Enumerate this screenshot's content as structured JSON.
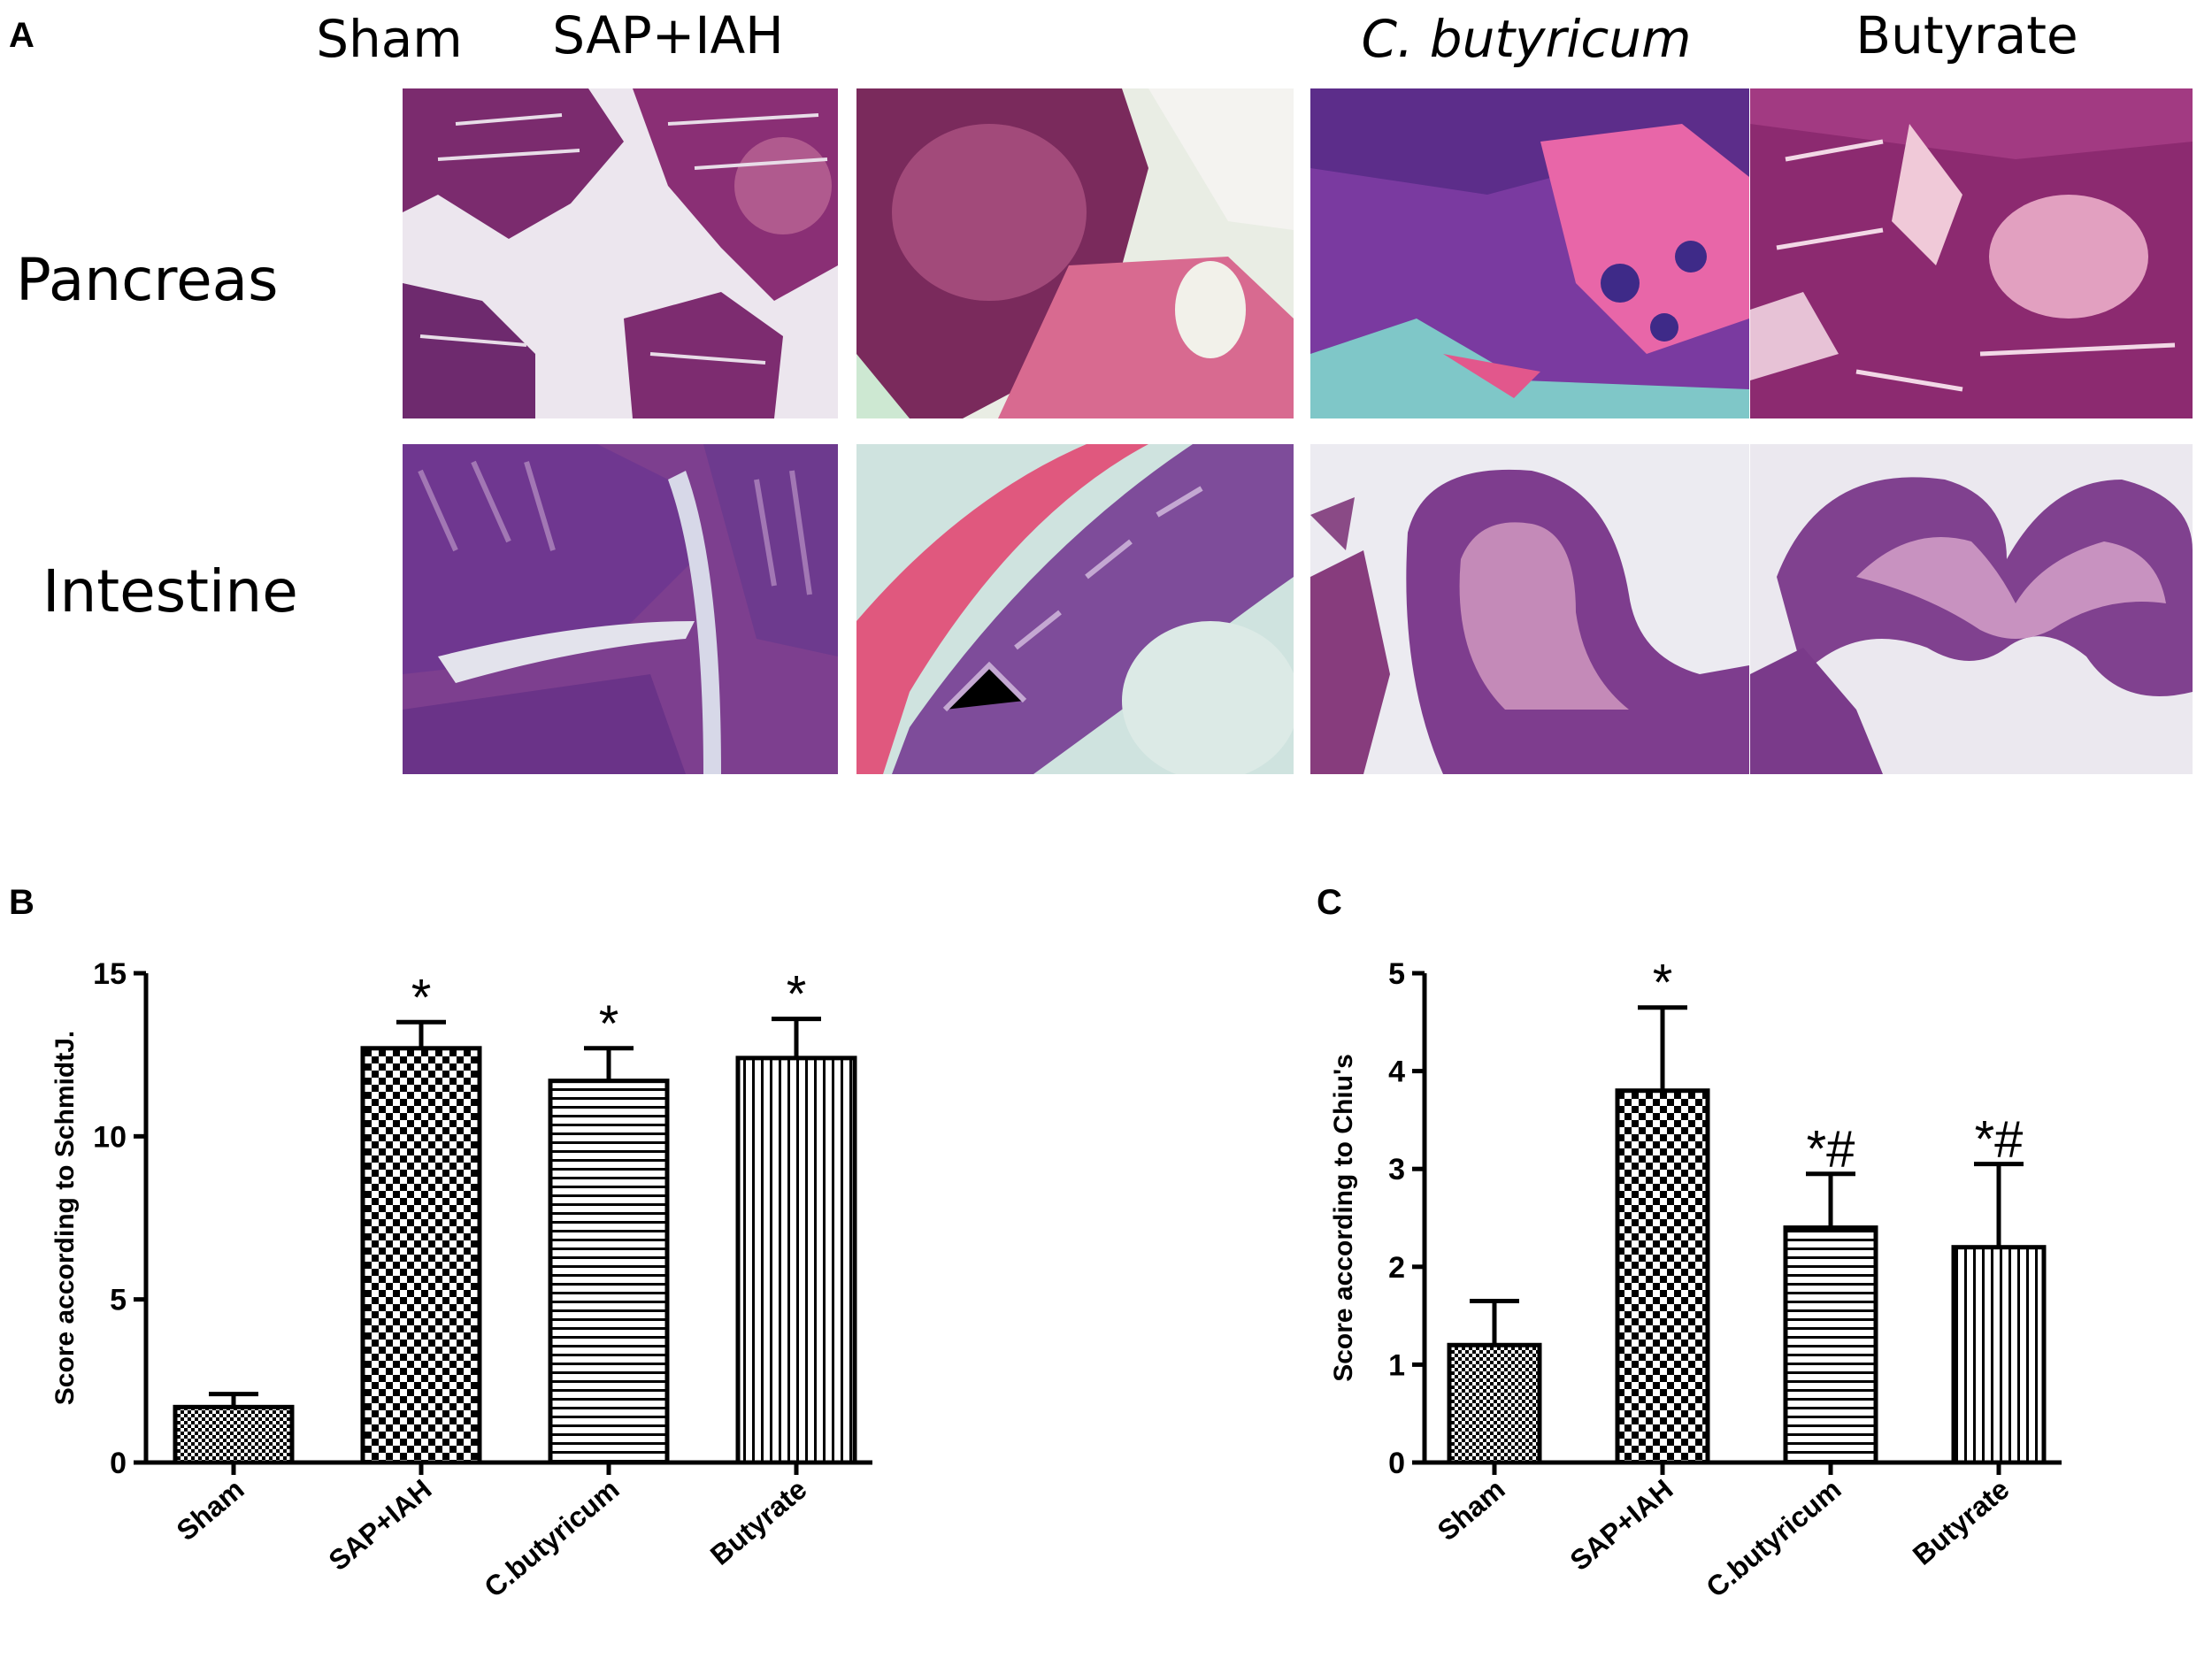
{
  "panel_a": {
    "letter": "A",
    "columns": [
      {
        "label": "Sham",
        "italic": false
      },
      {
        "label": "SAP+IAH",
        "italic": false
      },
      {
        "label": "C. butyricum",
        "italic": true
      },
      {
        "label": "Butyrate",
        "italic": false
      }
    ],
    "rows": [
      "Pancreas",
      "Intestine"
    ]
  },
  "panel_b": {
    "letter": "B"
  },
  "panel_c": {
    "letter": "C"
  },
  "chart_data": [
    {
      "type": "bar",
      "categories": [
        "Sham",
        "SAP+IAH",
        "C.butyricum",
        "Butyrate"
      ],
      "values": [
        1.7,
        12.7,
        11.7,
        12.4
      ],
      "error": [
        0.4,
        0.8,
        1.0,
        1.2
      ],
      "annotations": [
        "",
        "*",
        "*",
        "*"
      ],
      "patterns": [
        "fine-check",
        "check",
        "hstripe",
        "vstripe"
      ],
      "ylabel": "Score according to SchmidtJ.",
      "xlabel": "",
      "ylim": [
        0,
        15
      ],
      "yticks": [
        0,
        5,
        10,
        15
      ]
    },
    {
      "type": "bar",
      "categories": [
        "Sham",
        "SAP+IAH",
        "C.butyricum",
        "Butyrate"
      ],
      "values": [
        1.2,
        3.8,
        2.4,
        2.2
      ],
      "error": [
        0.45,
        0.85,
        0.55,
        0.85
      ],
      "annotations": [
        "",
        "*",
        "*#",
        "*#"
      ],
      "patterns": [
        "fine-check",
        "check",
        "hstripe",
        "vstripe"
      ],
      "ylabel": "Score according to Chiu's",
      "xlabel": "",
      "ylim": [
        0,
        5
      ],
      "yticks": [
        0,
        1,
        2,
        3,
        4,
        5
      ]
    }
  ]
}
